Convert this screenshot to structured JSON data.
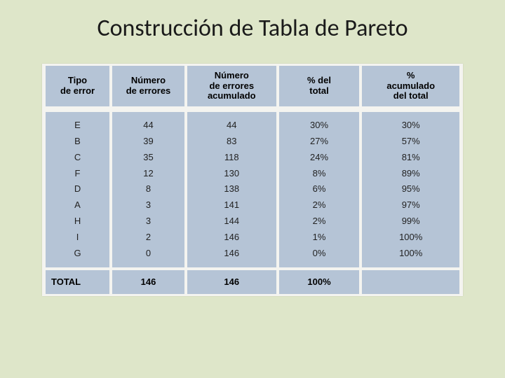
{
  "title": "Construcción de Tabla de Pareto",
  "table": {
    "type": "table",
    "background_color": "#dee6c9",
    "table_bg": "#b5c4d6",
    "gap_color": "#f4f4f0",
    "header_fontsize": 13,
    "body_fontsize": 13,
    "font_family": "Arial",
    "columns": [
      {
        "key": "tipo",
        "label": "Tipo\nde error",
        "width_pct": 16,
        "align": "center"
      },
      {
        "key": "num",
        "label": "Número\nde errores",
        "width_pct": 18,
        "align": "center"
      },
      {
        "key": "acum",
        "label": "Número\nde errores\nacumulado",
        "width_pct": 22,
        "align": "center"
      },
      {
        "key": "pct",
        "label": "% del\ntotal",
        "width_pct": 20,
        "align": "center"
      },
      {
        "key": "pct_acum",
        "label": "%\nacumulado\ndel total",
        "width_pct": 24,
        "align": "center"
      }
    ],
    "rows": [
      [
        "E",
        "44",
        "44",
        "30%",
        "30%"
      ],
      [
        "B",
        "39",
        "83",
        "27%",
        "57%"
      ],
      [
        "C",
        "35",
        "118",
        "24%",
        "81%"
      ],
      [
        "F",
        "12",
        "130",
        "8%",
        "89%"
      ],
      [
        "D",
        "8",
        "138",
        "6%",
        "95%"
      ],
      [
        "A",
        "3",
        "141",
        "2%",
        "97%"
      ],
      [
        "H",
        "3",
        "144",
        "2%",
        "99%"
      ],
      [
        "I",
        "2",
        "146",
        "1%",
        "100%"
      ],
      [
        "G",
        "0",
        "146",
        "0%",
        "100%"
      ]
    ],
    "total": {
      "label": "TOTAL",
      "values": [
        "146",
        "146",
        "100%",
        ""
      ]
    }
  }
}
